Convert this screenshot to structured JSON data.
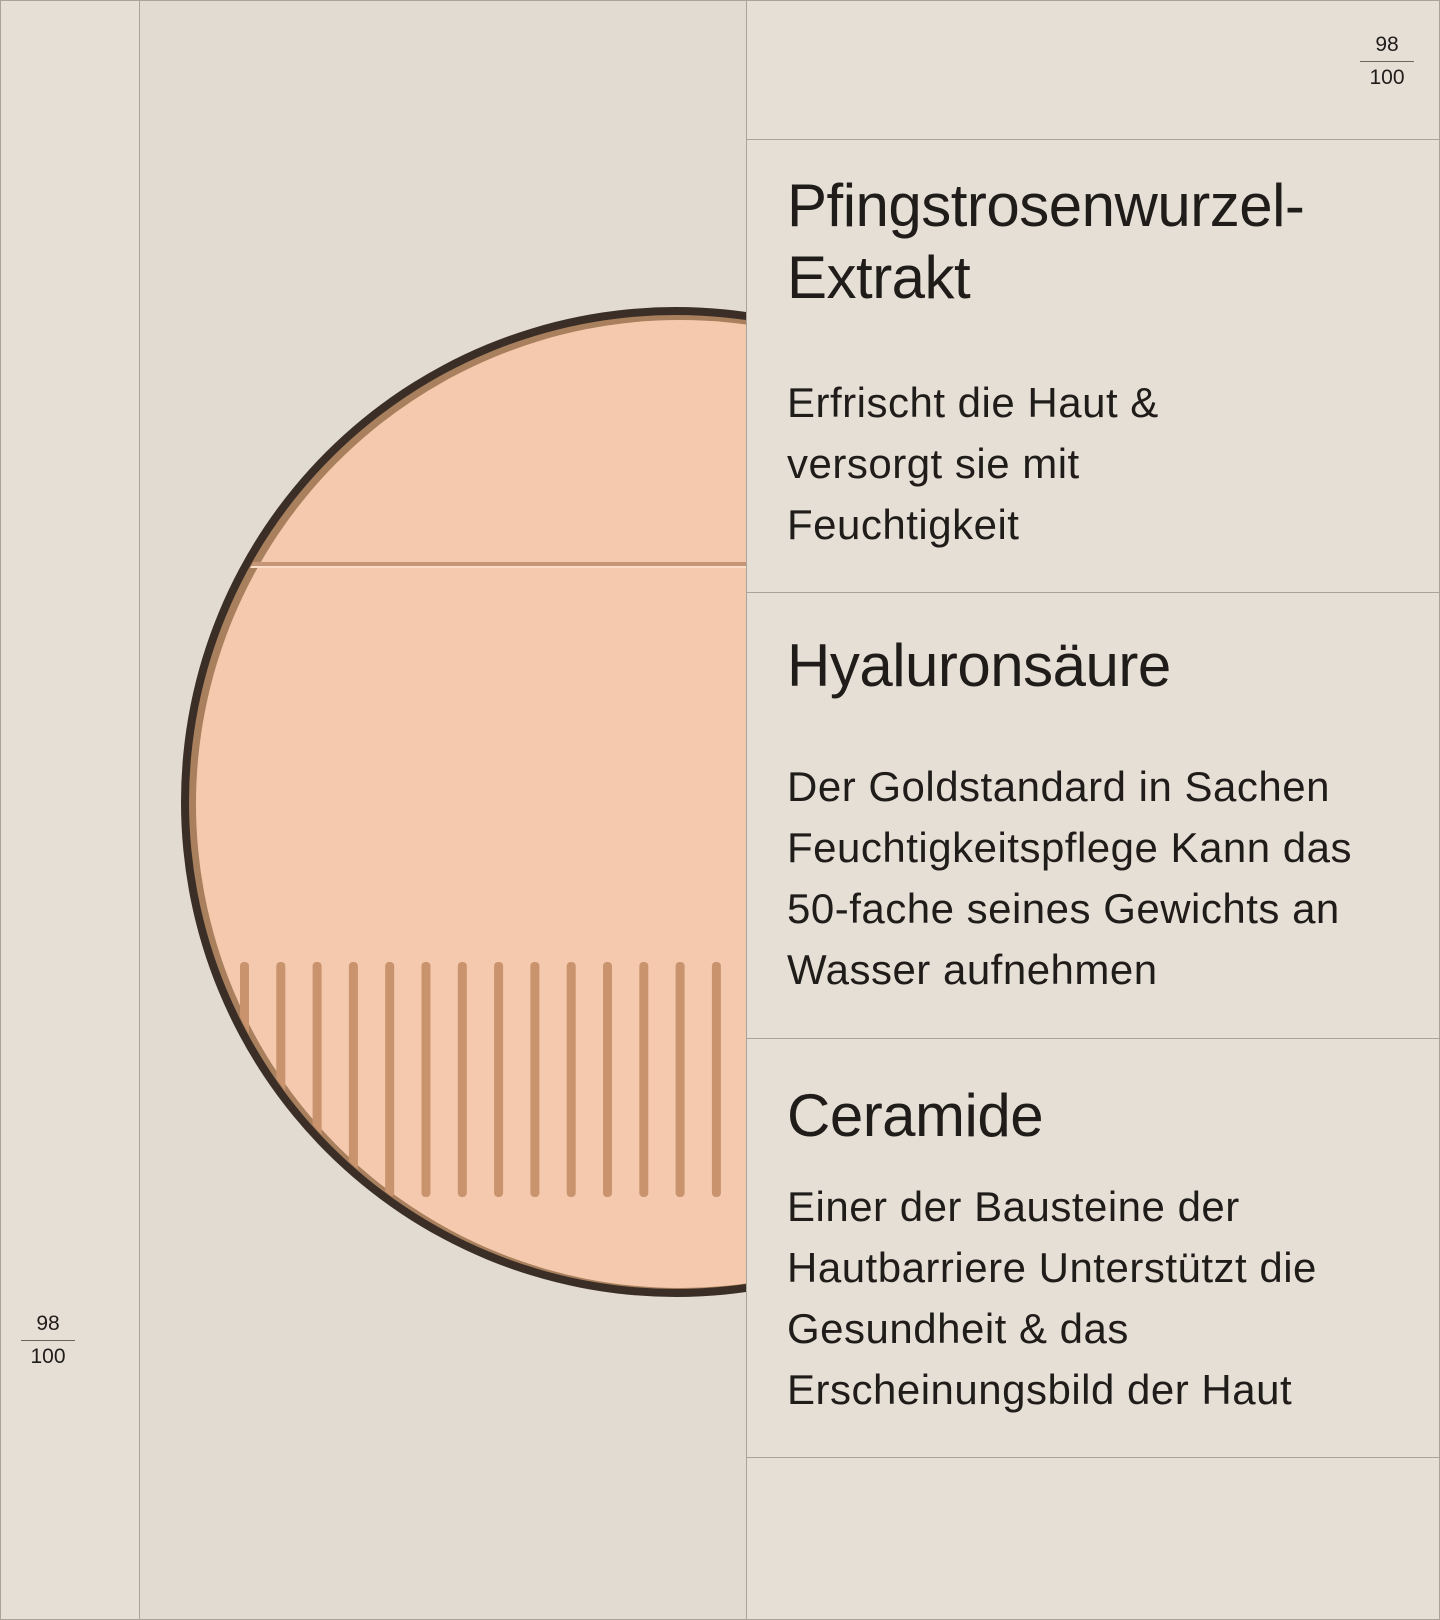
{
  "rating": {
    "numerator": "98",
    "denominator": "100"
  },
  "ingredients": [
    {
      "title": "Pfingstrosenwurzel-Extrakt",
      "description": "Erfrischt die Haut & versorgt sie mit Feuchtigkeit"
    },
    {
      "title": "Hyaluronsäure",
      "description": "Der Goldstandard in Sachen Feuchtigkeitspflege Kann das 50-fache seines Gewichts an Wasser aufnehmen"
    },
    {
      "title": "Ceramide",
      "description": "Einer der Bausteine der Hautbarriere Unterstützt die Gesundheit & das Erscheinungsbild der Haut"
    }
  ],
  "colors": {
    "background": "#e5dfd6",
    "powder": "#f4c9ad",
    "rim": "#3a2e26"
  }
}
